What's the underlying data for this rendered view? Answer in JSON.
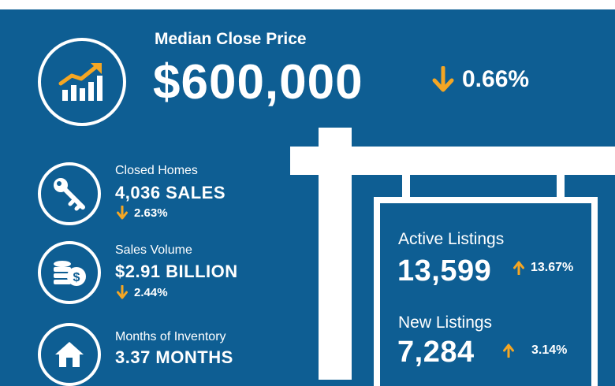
{
  "colors": {
    "background": "#0e5e93",
    "accent": "#f5a623",
    "foreground": "#ffffff"
  },
  "hero": {
    "icon": "rising-chart-icon",
    "title": "Median Close Price",
    "value": "$600,000",
    "change_direction": "down",
    "change": "0.66%"
  },
  "stats": [
    {
      "icon": "key-icon",
      "label": "Closed Homes",
      "value": "4,036 SALES",
      "change_direction": "down",
      "change": "2.63%"
    },
    {
      "icon": "coins-icon",
      "label": "Sales Volume",
      "value": "$2.91 BILLION",
      "change_direction": "down",
      "change": "2.44%"
    },
    {
      "icon": "house-icon",
      "label": "Months of Inventory",
      "value": "3.37 MONTHS"
    }
  ],
  "sign": {
    "items": [
      {
        "label": "Active Listings",
        "value": "13,599",
        "change_direction": "up",
        "change": "13.67%"
      },
      {
        "label": "New Listings",
        "value": "7,284",
        "change_direction": "up",
        "change": "3.14%"
      }
    ]
  }
}
